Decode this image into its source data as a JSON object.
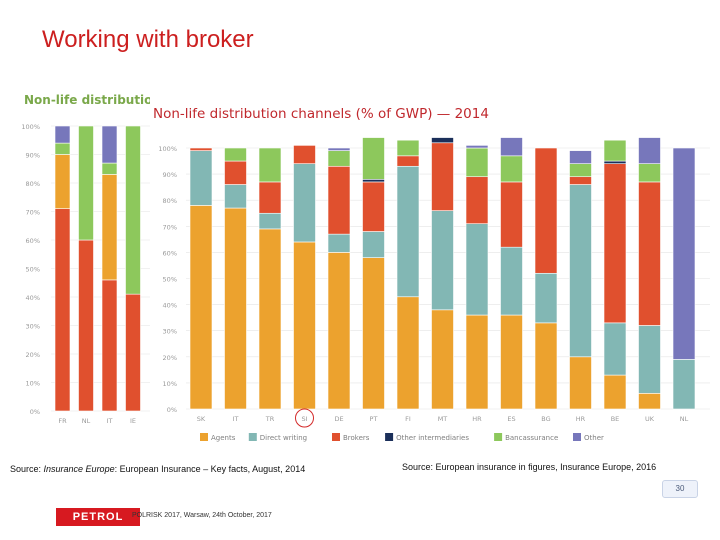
{
  "slide": {
    "title": "Working with broker",
    "source_left_prefix": "Source: ",
    "source_left_italic": "Insurance Europe",
    "source_left_suffix": ": European Insurance – Key facts, August, 2014",
    "source_right": "Source: European insurance in figures, Insurance Europe, 2016",
    "footer_logo": "PETROL",
    "footer_text": "POLRISK 2017, Warsaw, 24th October, 2017",
    "page_number": "30"
  },
  "colors": {
    "agents": "#ECA22E",
    "direct": "#82B7B4",
    "brokers": "#E0502E",
    "other_intermediaries": "#1B2F5A",
    "bancassurance": "#8DC85C",
    "other": "#7777BB"
  },
  "chart_data": [
    {
      "type": "bar",
      "stacked": true,
      "title": "Non-life distribution",
      "ylim": [
        0,
        100
      ],
      "yticks": [
        "0%",
        "10%",
        "20%",
        "30%",
        "40%",
        "50%",
        "60%",
        "70%",
        "80%",
        "90%",
        "100%"
      ],
      "categories": [
        "FR",
        "NL",
        "IT",
        "IE",
        "A"
      ],
      "series": [
        {
          "name": "Brokers",
          "color": "#E0502E",
          "values": [
            71,
            60,
            46,
            41,
            0
          ]
        },
        {
          "name": "Agents",
          "color": "#ECA22E",
          "values": [
            19,
            0,
            37,
            0,
            0
          ]
        },
        {
          "name": "Direct writing",
          "color": "#82B7B4",
          "values": [
            0,
            0,
            0,
            0,
            0
          ]
        },
        {
          "name": "Bancassurance",
          "color": "#8DC85C",
          "values": [
            4,
            40,
            4,
            59,
            0
          ]
        },
        {
          "name": "Other",
          "color": "#7777BB",
          "values": [
            6,
            0,
            13,
            0,
            0
          ]
        }
      ]
    },
    {
      "type": "bar",
      "stacked": true,
      "title": "Non-life distribution channels (% of GWP) — 2014",
      "ylim": [
        0,
        100
      ],
      "yticks": [
        "0%",
        "10%",
        "20%",
        "30%",
        "40%",
        "50%",
        "60%",
        "70%",
        "80%",
        "90%",
        "100%"
      ],
      "categories": [
        "SK",
        "IT",
        "TR",
        "SI",
        "DE",
        "PT",
        "FI",
        "MT",
        "HR",
        "ES",
        "BG",
        "HR",
        "BE",
        "UK",
        "NL"
      ],
      "legend_position": "bottom",
      "series": [
        {
          "name": "Agents",
          "color": "#ECA22E",
          "values": [
            78,
            77,
            69,
            64,
            60,
            58,
            43,
            38,
            36,
            36,
            33,
            20,
            13,
            6,
            0
          ]
        },
        {
          "name": "Direct writing",
          "color": "#82B7B4",
          "values": [
            21,
            9,
            6,
            30,
            7,
            10,
            50,
            38,
            35,
            26,
            19,
            66,
            20,
            26,
            19
          ]
        },
        {
          "name": "Brokers",
          "color": "#E0502E",
          "values": [
            1,
            9,
            12,
            7,
            26,
            19,
            4,
            26,
            18,
            25,
            48,
            3,
            61,
            55,
            0
          ]
        },
        {
          "name": "Other intermediaries",
          "color": "#1B2F5A",
          "values": [
            0,
            0,
            0,
            0,
            0,
            1,
            0,
            2,
            0,
            0,
            0,
            0,
            1,
            0,
            0
          ]
        },
        {
          "name": "Bancassurance",
          "color": "#8DC85C",
          "values": [
            0,
            5,
            13,
            0,
            6,
            16,
            6,
            0,
            11,
            10,
            0,
            5,
            8,
            7,
            0
          ]
        },
        {
          "name": "Other",
          "color": "#7777BB",
          "values": [
            0,
            0,
            0,
            0,
            1,
            0,
            0,
            0,
            1,
            7,
            0,
            5,
            0,
            10,
            81
          ]
        }
      ]
    }
  ]
}
